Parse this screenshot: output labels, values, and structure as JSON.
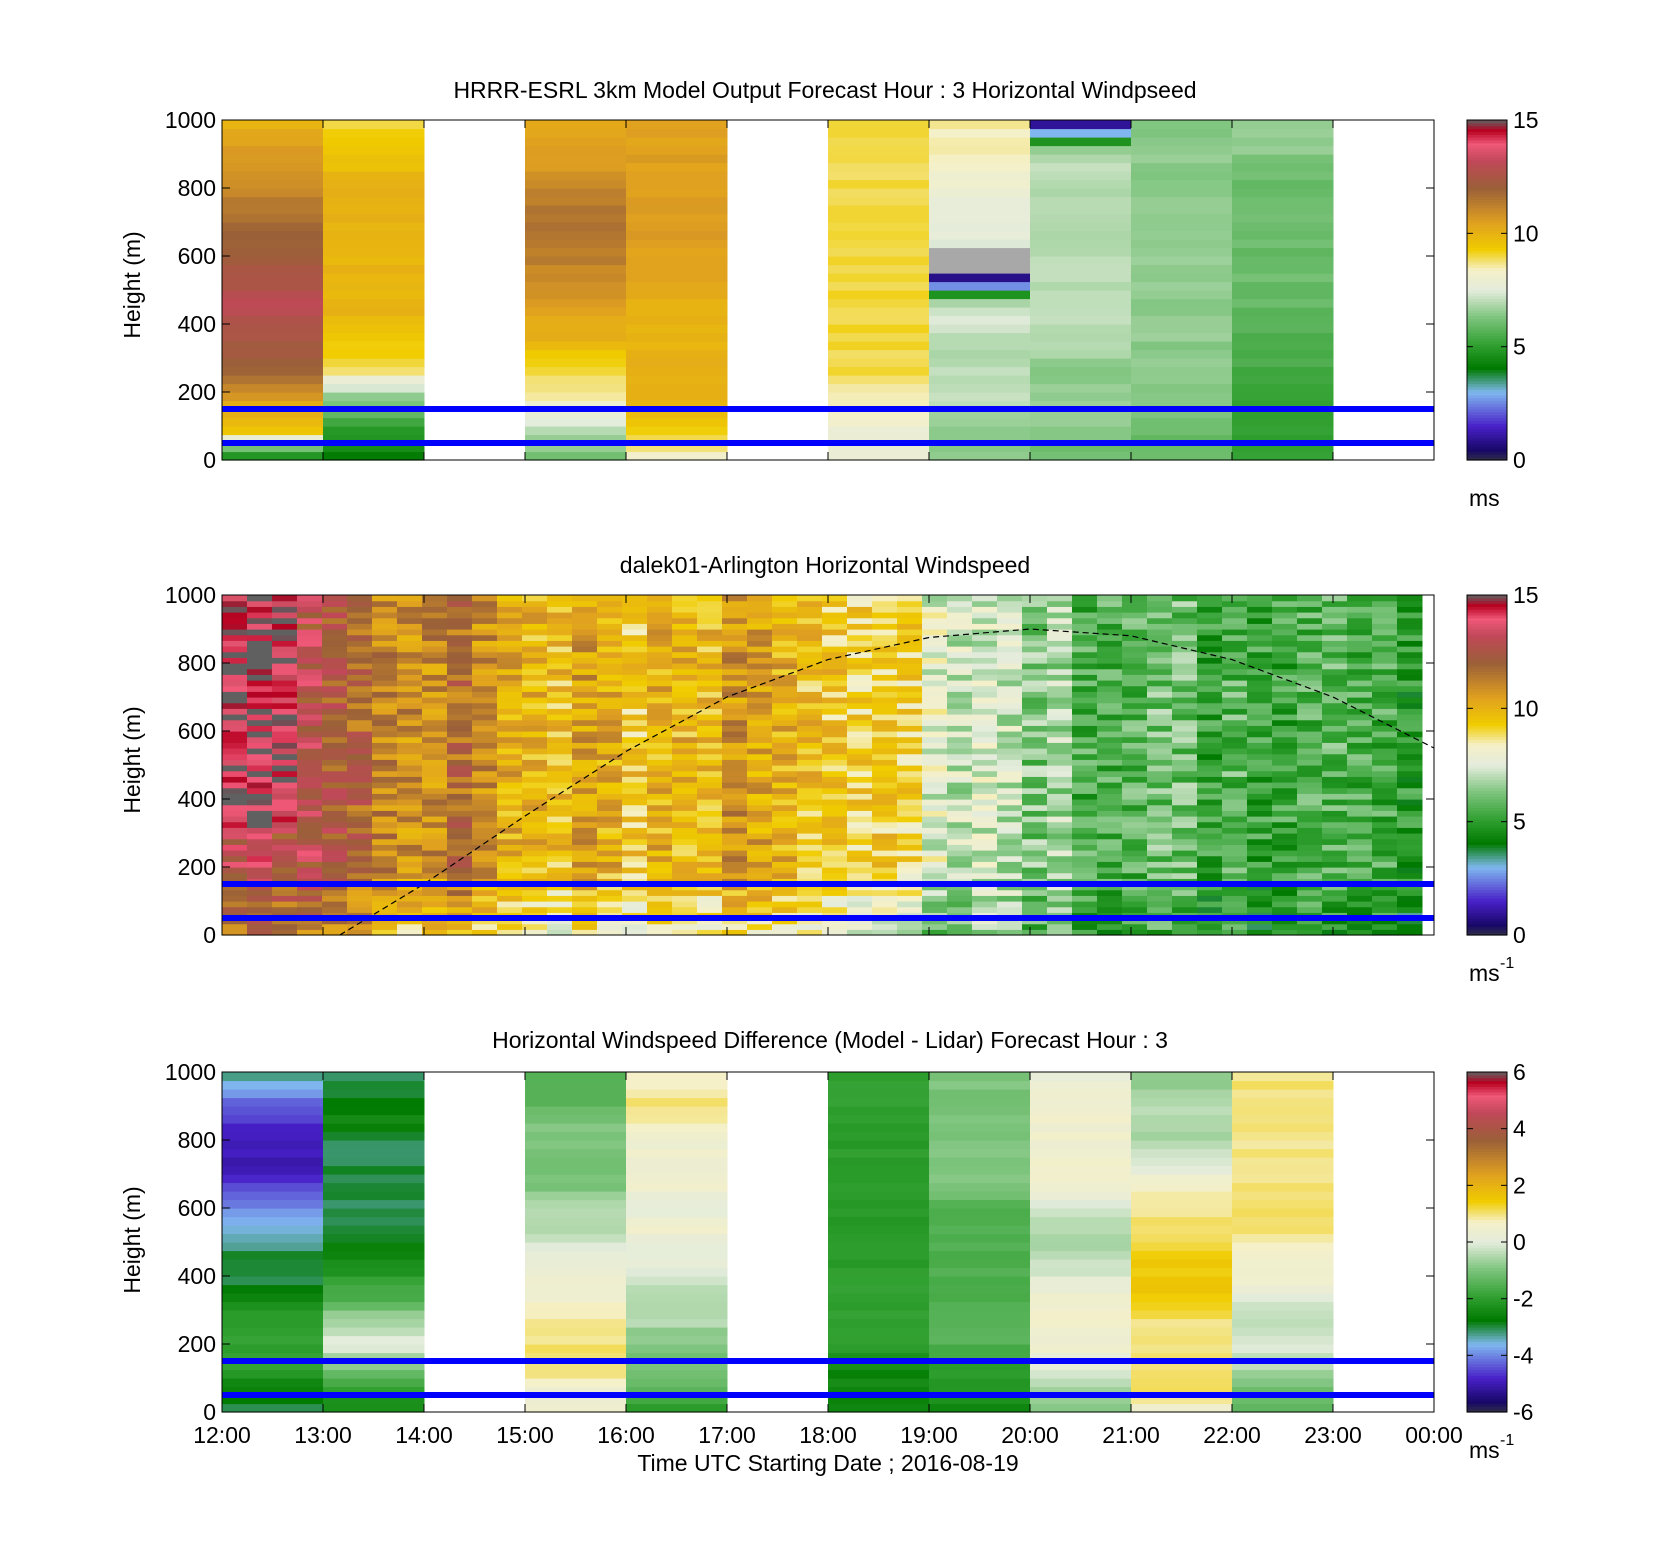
{
  "figure": {
    "xlabel": "Time UTC  Starting Date ; 2016-08-19",
    "x_ticks": [
      "12:00",
      "13:00",
      "14:00",
      "15:00",
      "16:00",
      "17:00",
      "18:00",
      "19:00",
      "20:00",
      "21:00",
      "22:00",
      "23:00",
      "00:00"
    ],
    "blue_lines_m": [
      50,
      150
    ],
    "blue_color": "#0000ff"
  },
  "chart_data": [
    {
      "type": "heatmap",
      "title": "HRRR-ESRL 3km Model Output   Forecast Hour : 3 Horizontal Windpseed",
      "ylabel": "Height (m)",
      "ylim": [
        0,
        1000
      ],
      "y_ticks": [
        "0",
        "200",
        "400",
        "600",
        "800",
        "1000"
      ],
      "xlim": [
        "12:00",
        "00:00"
      ],
      "colorbar": {
        "range": [
          0,
          15
        ],
        "ticks": [
          "0",
          "5",
          "10",
          "15"
        ],
        "unit": "ms"
      },
      "hourly_columns": [
        {
          "hour": "12:00",
          "speed_profile_low_to_high": [
            4,
            9.5,
            10.5,
            12,
            12.5,
            13,
            12.5,
            12,
            11.5,
            11,
            10.5,
            10
          ]
        },
        {
          "hour": "13:00",
          "speed_profile_low_to_high": [
            4,
            5,
            6.5,
            9,
            9.5,
            10,
            10,
            10,
            10,
            10,
            9.5,
            9
          ]
        },
        {
          "hour": "14:00",
          "speed_profile_low_to_high": null
        },
        {
          "hour": "15:00",
          "speed_profile_low_to_high": [
            6,
            7,
            8.5,
            9,
            10,
            10.5,
            11,
            11.5,
            11.5,
            11,
            10.5,
            10
          ]
        },
        {
          "hour": "16:00",
          "speed_profile_low_to_high": [
            8,
            9.5,
            10,
            10,
            10,
            10,
            10.5,
            10.5,
            10.5,
            10.5,
            10.5,
            10.5
          ]
        },
        {
          "hour": "17:00",
          "speed_profile_low_to_high": null
        },
        {
          "hour": "18:00",
          "speed_profile_low_to_high": [
            8,
            8,
            8.5,
            9,
            9,
            9,
            9,
            9,
            9,
            9,
            9,
            9
          ]
        },
        {
          "hour": "19:00",
          "speed_profile_low_to_high": [
            6.5,
            6.5,
            7,
            7,
            7,
            7.5,
            0,
            7.5,
            7.5,
            8,
            8.5,
            8.5
          ]
        },
        {
          "hour": "20:00",
          "speed_profile_low_to_high": [
            6,
            6.5,
            6.5,
            6.5,
            7,
            7,
            7,
            7,
            7,
            7,
            7,
            0
          ]
        },
        {
          "hour": "21:00",
          "speed_profile_low_to_high": [
            6,
            6,
            6.5,
            6.5,
            6.5,
            6.5,
            6.5,
            6.5,
            6.5,
            6.5,
            6.5,
            6.5
          ]
        },
        {
          "hour": "22:00",
          "speed_profile_low_to_high": [
            5,
            5,
            5,
            5.5,
            5.5,
            6,
            6,
            6,
            6,
            6,
            6.5,
            6.5
          ]
        },
        {
          "hour": "23:00",
          "speed_profile_low_to_high": null
        }
      ]
    },
    {
      "type": "heatmap",
      "title": "dalek01-Arlington  Horizontal Windspeed",
      "ylabel": "Height (m)",
      "ylim": [
        0,
        1000
      ],
      "y_ticks": [
        "0",
        "200",
        "400",
        "600",
        "800",
        "1000"
      ],
      "xlim": [
        "12:00",
        "00:00"
      ],
      "colorbar": {
        "range": [
          0,
          15
        ],
        "ticks": [
          "0",
          "5",
          "10",
          "15"
        ],
        "unit": "ms",
        "unit_superscript": "-1"
      },
      "approx_mean_speed_by_hour": {
        "12:00": 13.5,
        "13:00": 12,
        "14:00": 11.5,
        "15:00": 10.5,
        "16:00": 10,
        "17:00": 10,
        "18:00": 9.5,
        "19:00": 8,
        "20:00": 6.5,
        "21:00": 6,
        "22:00": 5.5,
        "23:00": 5
      },
      "boundary_layer_line": {
        "style": "dashed",
        "points": [
          {
            "x": "13:10",
            "y": 0
          },
          {
            "x": "14:00",
            "y": 150
          },
          {
            "x": "15:00",
            "y": 350
          },
          {
            "x": "16:00",
            "y": 540
          },
          {
            "x": "17:00",
            "y": 700
          },
          {
            "x": "18:00",
            "y": 810
          },
          {
            "x": "19:00",
            "y": 875
          },
          {
            "x": "20:00",
            "y": 900
          },
          {
            "x": "21:00",
            "y": 880
          },
          {
            "x": "22:00",
            "y": 810
          },
          {
            "x": "23:00",
            "y": 700
          },
          {
            "x": "00:00",
            "y": 550
          }
        ]
      }
    },
    {
      "type": "heatmap",
      "title": "Horizontal Windspeed Difference (Model - Lidar) Forecast Hour : 3",
      "ylabel": "Height (m)",
      "ylim": [
        0,
        1000
      ],
      "y_ticks": [
        "0",
        "200",
        "400",
        "600",
        "800",
        "1000"
      ],
      "xlim": [
        "12:00",
        "00:00"
      ],
      "colorbar": {
        "range": [
          -6,
          6
        ],
        "ticks": [
          "-6",
          "-4",
          "-2",
          "0",
          "2",
          "4",
          "6"
        ],
        "unit": "ms",
        "unit_superscript": "-1"
      },
      "hourly_columns": [
        {
          "hour": "12:00",
          "diff_profile_low_to_high": [
            -3,
            -2.5,
            -2,
            -2,
            -2,
            -2.5,
            -3,
            -3,
            -3.5,
            -4,
            -4.5,
            -5,
            -5,
            -4.5,
            -4,
            -3
          ]
        },
        {
          "hour": "13:00",
          "diff_profile_low_to_high": [
            -2.5,
            -2,
            -1,
            0,
            -0.5,
            -1.5,
            -2,
            -2.5,
            -3,
            -3,
            -3,
            -3,
            -3,
            -2.5,
            -3,
            -3
          ]
        },
        {
          "hour": "14:00",
          "diff_profile_low_to_high": null
        },
        {
          "hour": "15:00",
          "diff_profile_low_to_high": [
            0.5,
            0.5,
            1,
            1,
            1,
            0.5,
            0.5,
            0,
            -0.5,
            -0.5,
            -1,
            -1,
            -1,
            -1,
            -1.5,
            -1.5
          ]
        },
        {
          "hour": "16:00",
          "diff_profile_low_to_high": [
            -2,
            -1.5,
            -1,
            -1,
            -0.5,
            -0.5,
            0,
            0,
            0.5,
            0,
            0.5,
            0.5,
            0.5,
            1,
            1,
            0.5
          ]
        },
        {
          "hour": "17:00",
          "diff_profile_low_to_high": null
        },
        {
          "hour": "18:00",
          "diff_profile_low_to_high": [
            -2.5,
            -2.5,
            -2.5,
            -2,
            -2,
            -2,
            -2,
            -2,
            -2,
            -2,
            -2,
            -2,
            -2,
            -2,
            -2,
            -2
          ]
        },
        {
          "hour": "19:00",
          "diff_profile_low_to_high": [
            -2.5,
            -2,
            -2,
            -1.5,
            -1.5,
            -1.5,
            -1.5,
            -1.5,
            -1.5,
            -1.5,
            -1,
            -1,
            -1,
            -1,
            -1,
            -1
          ]
        },
        {
          "hour": "20:00",
          "diff_profile_low_to_high": [
            -1,
            -0.5,
            0,
            0.5,
            0.5,
            0.5,
            0,
            -0.5,
            -0.5,
            0,
            0.5,
            0.5,
            0.5,
            0.5,
            0.5,
            0
          ]
        },
        {
          "hour": "21:00",
          "diff_profile_low_to_high": [
            0.5,
            1,
            1,
            1,
            1,
            1.5,
            1.5,
            1.5,
            1,
            1,
            0.5,
            0,
            -0.5,
            -0.5,
            -0.5,
            -1
          ]
        },
        {
          "hour": "22:00",
          "diff_profile_low_to_high": [
            -1.5,
            -1,
            -0.5,
            0,
            -0.5,
            0,
            0.5,
            0.5,
            1,
            1,
            1,
            1,
            1,
            1,
            1,
            1
          ]
        },
        {
          "hour": "23:00",
          "diff_profile_low_to_high": null
        }
      ]
    }
  ]
}
